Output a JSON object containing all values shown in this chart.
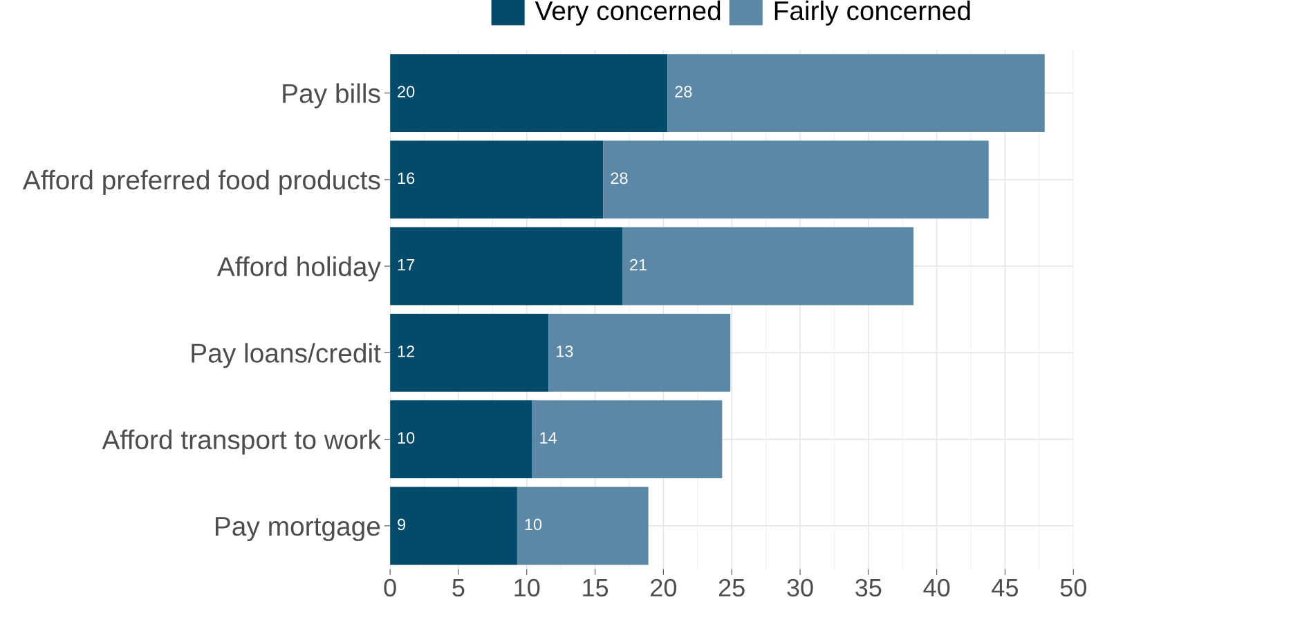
{
  "chart_data": {
    "type": "bar",
    "orientation": "horizontal",
    "stacked": true,
    "categories": [
      "Pay bills",
      "Afford preferred food products",
      "Afford holiday",
      "Pay loans/credit",
      "Afford transport to work",
      "Pay mortgage"
    ],
    "series": [
      {
        "name": "Very concerned",
        "color": "#034a6b",
        "values": [
          20.3,
          15.6,
          17.0,
          11.6,
          10.4,
          9.3
        ],
        "value_labels": [
          "20",
          "16",
          "17",
          "12",
          "10",
          "9"
        ]
      },
      {
        "name": "Fairly concerned",
        "color": "#5a88a6",
        "values": [
          27.6,
          28.2,
          21.3,
          13.3,
          13.9,
          9.6
        ],
        "value_labels": [
          "28",
          "28",
          "21",
          "13",
          "14",
          "10"
        ]
      }
    ],
    "xlim": [
      0,
      50
    ],
    "xticks": [
      0,
      5,
      10,
      15,
      20,
      25,
      30,
      35,
      40,
      45,
      50
    ],
    "grid": true,
    "legend": "top"
  }
}
